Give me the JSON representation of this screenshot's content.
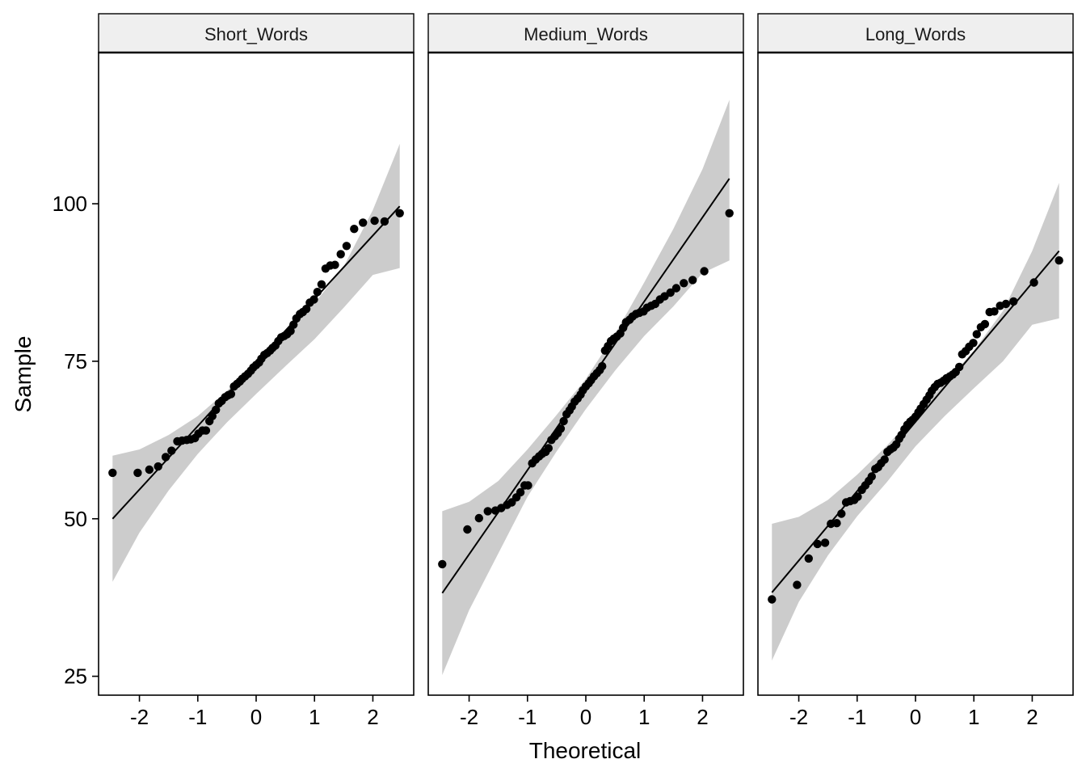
{
  "chart_data": {
    "type": "scatter",
    "xlabel": "Theoretical",
    "ylabel": "Sample",
    "ylim": [
      22,
      124
    ],
    "xlim": [
      -2.7,
      2.7
    ],
    "x_ticks": [
      -2,
      -1,
      0,
      1,
      2
    ],
    "y_ticks": [
      25,
      50,
      75,
      100
    ],
    "grid": false,
    "colors": {
      "points": "#000000",
      "band": "#cccccc",
      "line": "#000000",
      "strip": "#efefef"
    },
    "panels": [
      {
        "title": "Short_Words",
        "line": {
          "x": [
            -2.46,
            2.46
          ],
          "y": [
            50.0,
            99.6
          ]
        },
        "band_upper": {
          "x": [
            -2.46,
            -2.0,
            -1.5,
            -1.0,
            -0.5,
            0.0,
            0.5,
            1.0,
            1.5,
            2.0,
            2.46
          ],
          "y": [
            60.0,
            61.0,
            63.3,
            66.3,
            70.3,
            74.8,
            79.3,
            84.2,
            90.0,
            99.0,
            109.5
          ]
        },
        "band_lower": {
          "x": [
            -2.46,
            -2.0,
            -1.5,
            -1.0,
            -0.5,
            0.0,
            0.5,
            1.0,
            1.5,
            2.0,
            2.46
          ],
          "y": [
            40.0,
            47.8,
            54.5,
            60.3,
            65.3,
            69.8,
            74.2,
            78.5,
            83.5,
            88.7,
            89.8
          ]
        },
        "points": [
          [
            -2.46,
            57.3
          ],
          [
            -2.03,
            57.3
          ],
          [
            -1.83,
            57.8
          ],
          [
            -1.68,
            58.3
          ],
          [
            -1.55,
            59.8
          ],
          [
            -1.45,
            60.8
          ],
          [
            -1.35,
            62.3
          ],
          [
            -1.27,
            62.4
          ],
          [
            -1.19,
            62.5
          ],
          [
            -1.12,
            62.6
          ],
          [
            -1.05,
            62.8
          ],
          [
            -0.99,
            63.5
          ],
          [
            -0.92,
            64.0
          ],
          [
            -0.86,
            64.0
          ],
          [
            -0.8,
            65.5
          ],
          [
            -0.75,
            66.3
          ],
          [
            -0.69,
            67.3
          ],
          [
            -0.64,
            68.3
          ],
          [
            -0.59,
            68.7
          ],
          [
            -0.53,
            69.3
          ],
          [
            -0.48,
            69.6
          ],
          [
            -0.43,
            69.8
          ],
          [
            -0.38,
            71.0
          ],
          [
            -0.33,
            71.4
          ],
          [
            -0.28,
            71.8
          ],
          [
            -0.24,
            72.2
          ],
          [
            -0.19,
            72.6
          ],
          [
            -0.14,
            73.0
          ],
          [
            -0.09,
            73.5
          ],
          [
            -0.05,
            74.0
          ],
          [
            0.0,
            74.4
          ],
          [
            0.05,
            74.8
          ],
          [
            0.09,
            75.4
          ],
          [
            0.14,
            76.0
          ],
          [
            0.19,
            76.3
          ],
          [
            0.24,
            76.7
          ],
          [
            0.28,
            77.1
          ],
          [
            0.33,
            77.5
          ],
          [
            0.38,
            78.2
          ],
          [
            0.43,
            78.8
          ],
          [
            0.48,
            79.0
          ],
          [
            0.53,
            79.3
          ],
          [
            0.59,
            79.8
          ],
          [
            0.64,
            80.8
          ],
          [
            0.69,
            81.8
          ],
          [
            0.75,
            82.5
          ],
          [
            0.8,
            82.8
          ],
          [
            0.86,
            83.3
          ],
          [
            0.92,
            84.3
          ],
          [
            0.99,
            84.8
          ],
          [
            1.05,
            86.0
          ],
          [
            1.12,
            87.2
          ],
          [
            1.19,
            89.7
          ],
          [
            1.27,
            90.2
          ],
          [
            1.35,
            90.3
          ],
          [
            1.45,
            92.0
          ],
          [
            1.55,
            93.3
          ],
          [
            1.68,
            96.0
          ],
          [
            1.83,
            97.0
          ],
          [
            2.03,
            97.3
          ],
          [
            2.2,
            97.2
          ],
          [
            2.46,
            98.5
          ]
        ]
      },
      {
        "title": "Medium_Words",
        "line": {
          "x": [
            -2.46,
            2.46
          ],
          "y": [
            38.2,
            104.0
          ]
        },
        "band_upper": {
          "x": [
            -2.46,
            -2.0,
            -1.5,
            -1.0,
            -0.5,
            0.0,
            0.5,
            1.0,
            1.5,
            2.0,
            2.46
          ],
          "y": [
            51.2,
            52.7,
            56.0,
            61.0,
            66.5,
            72.2,
            79.3,
            87.5,
            96.0,
            105.5,
            116.5
          ]
        },
        "band_lower": {
          "x": [
            -2.46,
            -2.0,
            -1.5,
            -1.0,
            -0.5,
            0.0,
            0.5,
            1.0,
            1.5,
            2.0,
            2.46
          ],
          "y": [
            25.2,
            35.5,
            44.5,
            53.5,
            60.7,
            67.4,
            73.5,
            79.0,
            83.7,
            89.0,
            91.0
          ]
        },
        "points": [
          [
            -2.46,
            42.8
          ],
          [
            -2.03,
            48.3
          ],
          [
            -1.83,
            50.1
          ],
          [
            -1.68,
            51.2
          ],
          [
            -1.55,
            51.3
          ],
          [
            -1.45,
            51.7
          ],
          [
            -1.35,
            52.2
          ],
          [
            -1.27,
            52.6
          ],
          [
            -1.19,
            53.4
          ],
          [
            -1.12,
            54.2
          ],
          [
            -1.05,
            55.3
          ],
          [
            -0.99,
            55.3
          ],
          [
            -0.92,
            58.8
          ],
          [
            -0.86,
            59.4
          ],
          [
            -0.8,
            59.9
          ],
          [
            -0.75,
            60.3
          ],
          [
            -0.69,
            60.6
          ],
          [
            -0.64,
            61.2
          ],
          [
            -0.59,
            62.5
          ],
          [
            -0.53,
            63.1
          ],
          [
            -0.48,
            63.6
          ],
          [
            -0.43,
            64.3
          ],
          [
            -0.38,
            65.5
          ],
          [
            -0.33,
            66.6
          ],
          [
            -0.28,
            67.2
          ],
          [
            -0.24,
            67.8
          ],
          [
            -0.19,
            68.6
          ],
          [
            -0.14,
            69.1
          ],
          [
            -0.09,
            69.7
          ],
          [
            -0.05,
            70.4
          ],
          [
            0.0,
            71.0
          ],
          [
            0.05,
            71.5
          ],
          [
            0.09,
            72.0
          ],
          [
            0.14,
            72.6
          ],
          [
            0.19,
            73.1
          ],
          [
            0.24,
            73.6
          ],
          [
            0.28,
            74.2
          ],
          [
            0.33,
            76.7
          ],
          [
            0.38,
            77.4
          ],
          [
            0.43,
            78.2
          ],
          [
            0.48,
            78.6
          ],
          [
            0.53,
            78.9
          ],
          [
            0.59,
            79.4
          ],
          [
            0.64,
            80.3
          ],
          [
            0.69,
            81.2
          ],
          [
            0.75,
            81.6
          ],
          [
            0.8,
            82.1
          ],
          [
            0.86,
            82.5
          ],
          [
            0.92,
            82.7
          ],
          [
            0.99,
            82.9
          ],
          [
            1.05,
            83.5
          ],
          [
            1.12,
            83.8
          ],
          [
            1.19,
            84.1
          ],
          [
            1.27,
            84.8
          ],
          [
            1.35,
            85.3
          ],
          [
            1.45,
            85.9
          ],
          [
            1.55,
            86.6
          ],
          [
            1.68,
            87.4
          ],
          [
            1.83,
            87.9
          ],
          [
            2.03,
            89.3
          ],
          [
            2.46,
            98.5
          ]
        ]
      },
      {
        "title": "Long_Words",
        "line": {
          "x": [
            -2.46,
            2.46
          ],
          "y": [
            38.3,
            92.5
          ]
        },
        "band_upper": {
          "x": [
            -2.46,
            -2.0,
            -1.5,
            -1.0,
            -0.5,
            0.0,
            0.5,
            1.0,
            1.5,
            2.0,
            2.46
          ],
          "y": [
            49.2,
            50.3,
            53.0,
            57.0,
            61.5,
            66.6,
            71.5,
            76.7,
            83.0,
            92.5,
            103.3
          ]
        },
        "band_lower": {
          "x": [
            -2.46,
            -2.0,
            -1.5,
            -1.0,
            -0.5,
            0.0,
            0.5,
            1.0,
            1.5,
            2.0,
            2.46
          ],
          "y": [
            27.5,
            36.8,
            44.2,
            50.4,
            55.7,
            61.5,
            66.3,
            70.7,
            75.0,
            80.8,
            81.8
          ]
        },
        "points": [
          [
            -2.46,
            37.2
          ],
          [
            -2.03,
            39.5
          ],
          [
            -1.83,
            43.7
          ],
          [
            -1.68,
            46.0
          ],
          [
            -1.55,
            46.2
          ],
          [
            -1.45,
            49.2
          ],
          [
            -1.35,
            49.3
          ],
          [
            -1.27,
            50.8
          ],
          [
            -1.19,
            52.6
          ],
          [
            -1.12,
            52.8
          ],
          [
            -1.05,
            53.0
          ],
          [
            -0.99,
            53.5
          ],
          [
            -0.92,
            54.6
          ],
          [
            -0.86,
            55.3
          ],
          [
            -0.8,
            56.0
          ],
          [
            -0.75,
            56.7
          ],
          [
            -0.69,
            57.9
          ],
          [
            -0.64,
            58.2
          ],
          [
            -0.59,
            58.8
          ],
          [
            -0.53,
            59.4
          ],
          [
            -0.48,
            60.6
          ],
          [
            -0.43,
            61.0
          ],
          [
            -0.38,
            61.3
          ],
          [
            -0.33,
            61.8
          ],
          [
            -0.28,
            62.7
          ],
          [
            -0.24,
            63.3
          ],
          [
            -0.19,
            64.2
          ],
          [
            -0.14,
            64.9
          ],
          [
            -0.09,
            65.4
          ],
          [
            -0.05,
            65.7
          ],
          [
            0.0,
            66.2
          ],
          [
            0.05,
            66.9
          ],
          [
            0.09,
            67.5
          ],
          [
            0.14,
            68.2
          ],
          [
            0.19,
            68.9
          ],
          [
            0.24,
            69.6
          ],
          [
            0.28,
            70.3
          ],
          [
            0.33,
            70.9
          ],
          [
            0.38,
            71.4
          ],
          [
            0.43,
            71.6
          ],
          [
            0.48,
            71.9
          ],
          [
            0.53,
            72.3
          ],
          [
            0.59,
            72.6
          ],
          [
            0.64,
            72.9
          ],
          [
            0.69,
            73.3
          ],
          [
            0.75,
            74.1
          ],
          [
            0.8,
            76.1
          ],
          [
            0.86,
            76.6
          ],
          [
            0.92,
            77.3
          ],
          [
            0.99,
            77.9
          ],
          [
            1.05,
            79.3
          ],
          [
            1.12,
            80.4
          ],
          [
            1.19,
            80.9
          ],
          [
            1.27,
            82.8
          ],
          [
            1.35,
            82.9
          ],
          [
            1.45,
            83.8
          ],
          [
            1.55,
            84.1
          ],
          [
            1.68,
            84.5
          ],
          [
            2.03,
            87.5
          ],
          [
            2.46,
            91.0
          ]
        ]
      }
    ]
  }
}
